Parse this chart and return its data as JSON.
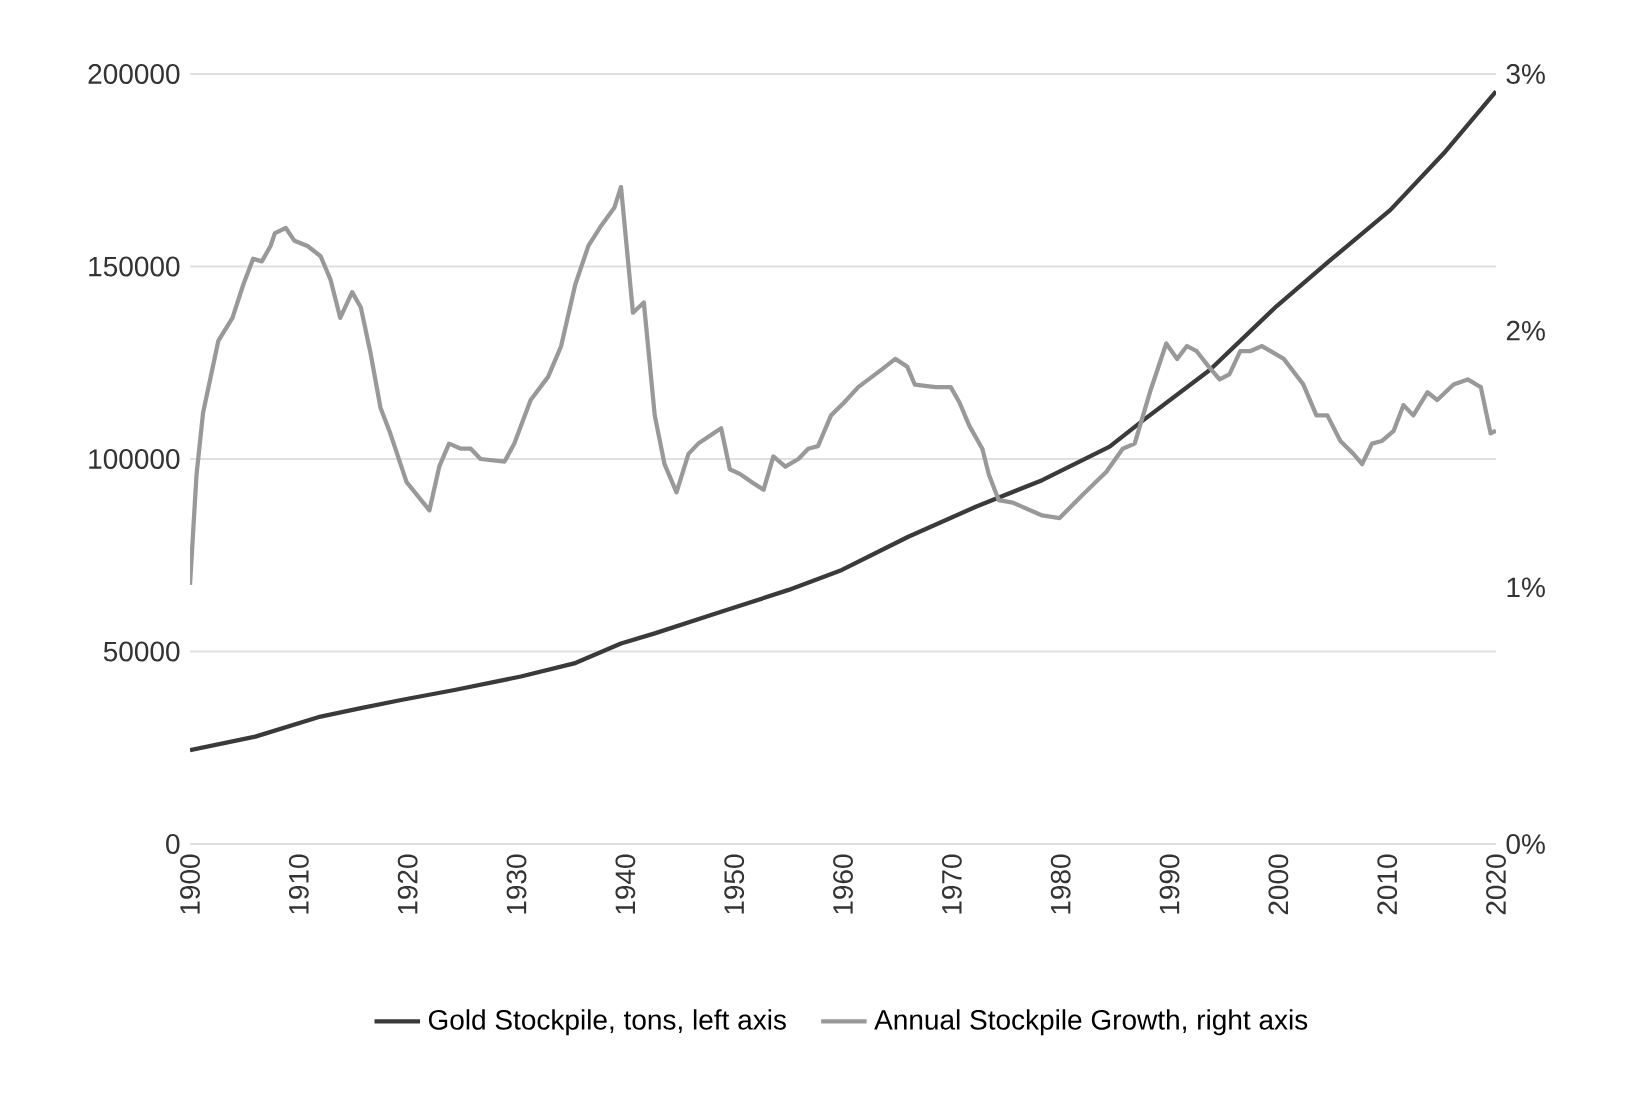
{
  "chart_data": {
    "type": "line",
    "xlim": [
      1900,
      2020
    ],
    "xticks": [
      1900,
      1910,
      1920,
      1930,
      1940,
      1950,
      1960,
      1970,
      1980,
      1990,
      2000,
      2010,
      2020
    ],
    "ylim": [
      0,
      200000
    ],
    "yticks": [
      0,
      50000,
      100000,
      150000,
      200000
    ],
    "y2lim": [
      0,
      3
    ],
    "y2ticks": [
      {
        "value": 0,
        "label": "0%"
      },
      {
        "value": 1,
        "label": "1%"
      },
      {
        "value": 2,
        "label": "2%"
      },
      {
        "value": 3,
        "label": "3%"
      }
    ],
    "grid": "y",
    "legend": "bottom",
    "marker": "none",
    "line_style": "solid",
    "series": [
      {
        "name": "Gold Stockpile, tons, left axis",
        "color": "#3a3a3a",
        "x": [
          1900,
          1906,
          1912,
          1915.7,
          1919.4,
          1924.3,
          1930.4,
          1935.3,
          1939.6,
          1942.7,
          1948.8,
          1955,
          1959.9,
          1966,
          1972.2,
          1978.3,
          1984.5,
          1987.6,
          1993.7,
          1999.8,
          2004.8,
          2010.3,
          2015.2,
          2020
        ],
        "values": [
          24400,
          27900,
          33100,
          35300,
          37400,
          40000,
          43500,
          46900,
          52100,
          54700,
          60300,
          66000,
          71200,
          79800,
          87600,
          94500,
          103200,
          110100,
          123100,
          139600,
          151700,
          164700,
          179400,
          195500
        ]
      },
      {
        "name": "Annual Stockpile Growth, right axis",
        "color": "#999999",
        "axis": "y2",
        "x": [
          1900,
          1900.6,
          1901.2,
          1902.6,
          1903.9,
          1904.9,
          1905.8,
          1906.6,
          1907.4,
          1907.8,
          1908.8,
          1909.6,
          1910.8,
          1912,
          1912.9,
          1913.8,
          1914.9,
          1915.7,
          1916.6,
          1917.5,
          1918.4,
          1919.9,
          1922,
          1922.9,
          1923.8,
          1924.9,
          1925.8,
          1926.7,
          1928.9,
          1929.8,
          1931.3,
          1932.9,
          1934.1,
          1935.4,
          1936.6,
          1937.8,
          1939,
          1939.6,
          1940.7,
          1941.7,
          1942.7,
          1943.6,
          1944.7,
          1945.8,
          1946.7,
          1948.8,
          1949.6,
          1950.6,
          1951.6,
          1952.7,
          1953.6,
          1954.7,
          1955.9,
          1956.8,
          1957.7,
          1958.9,
          1960.1,
          1961.4,
          1963.6,
          1964.8,
          1965.9,
          1966.6,
          1968.5,
          1969.9,
          1970.7,
          1971.6,
          1972.8,
          1973.4,
          1974.3,
          1975.6,
          1978.3,
          1979.9,
          1982,
          1984.2,
          1985.7,
          1986.8,
          1988.2,
          1989.7,
          1990.7,
          1991.6,
          1992.5,
          1993.6,
          1994.6,
          1995.5,
          1996.5,
          1997.4,
          1998.5,
          2000.5,
          2002.3,
          2003.5,
          2004.5,
          2005.7,
          2006.9,
          2007.7,
          2008.6,
          2009.5,
          2010.6,
          2011.5,
          2012.4,
          2013.7,
          2014.6,
          2016.1,
          2017.4,
          2018.6,
          2019.5,
          2020
        ],
        "values": [
          1.01,
          1.44,
          1.68,
          1.96,
          2.05,
          2.18,
          2.28,
          2.27,
          2.33,
          2.38,
          2.4,
          2.35,
          2.33,
          2.29,
          2.2,
          2.05,
          2.15,
          2.09,
          1.91,
          1.7,
          1.6,
          1.41,
          1.3,
          1.47,
          1.56,
          1.54,
          1.54,
          1.5,
          1.49,
          1.56,
          1.73,
          1.82,
          1.94,
          2.18,
          2.33,
          2.41,
          2.48,
          2.56,
          2.07,
          2.11,
          1.67,
          1.48,
          1.37,
          1.52,
          1.56,
          1.62,
          1.46,
          1.44,
          1.41,
          1.38,
          1.51,
          1.47,
          1.5,
          1.54,
          1.55,
          1.67,
          1.72,
          1.78,
          1.85,
          1.89,
          1.86,
          1.79,
          1.78,
          1.78,
          1.72,
          1.63,
          1.54,
          1.44,
          1.34,
          1.33,
          1.28,
          1.27,
          1.36,
          1.45,
          1.54,
          1.56,
          1.76,
          1.95,
          1.89,
          1.94,
          1.92,
          1.86,
          1.81,
          1.83,
          1.92,
          1.92,
          1.94,
          1.89,
          1.79,
          1.67,
          1.67,
          1.57,
          1.52,
          1.48,
          1.56,
          1.57,
          1.61,
          1.71,
          1.67,
          1.76,
          1.73,
          1.79,
          1.81,
          1.78,
          1.6,
          1.61
        ]
      }
    ]
  }
}
